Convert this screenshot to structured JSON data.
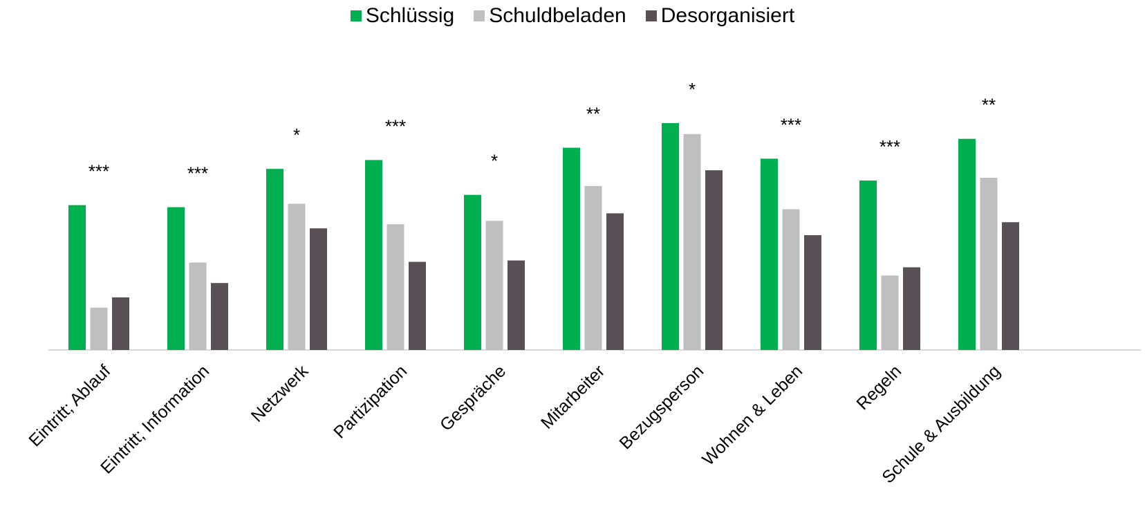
{
  "chart_data": {
    "type": "bar",
    "categories": [
      "Eintritt; Ablauf",
      "Eintritt; Information",
      "Netzwerk",
      "Partizipation",
      "Gespräche",
      "Mitarbeiter",
      "Bezugsperson",
      "Wohnen & Leben",
      "Regeln",
      "Schule & Ausbildung"
    ],
    "series": [
      {
        "name": "Schlüssig",
        "color": "#00b050",
        "values": [
          212,
          209,
          265,
          278,
          227,
          296,
          332,
          280,
          248,
          309
        ]
      },
      {
        "name": "Schuldbeladen",
        "color": "#bfbfbf",
        "values": [
          62,
          128,
          214,
          184,
          189,
          240,
          316,
          206,
          109,
          252
        ]
      },
      {
        "name": "Desorganisiert",
        "color": "#595055",
        "values": [
          77,
          98,
          178,
          129,
          131,
          200,
          263,
          168,
          121,
          187
        ]
      }
    ],
    "significance": [
      "***",
      "***",
      "*",
      "***",
      "*",
      "**",
      "*",
      "***",
      "***",
      "**"
    ],
    "ylim": [
      0,
      360
    ],
    "legend_position": "top",
    "grid": false
  }
}
